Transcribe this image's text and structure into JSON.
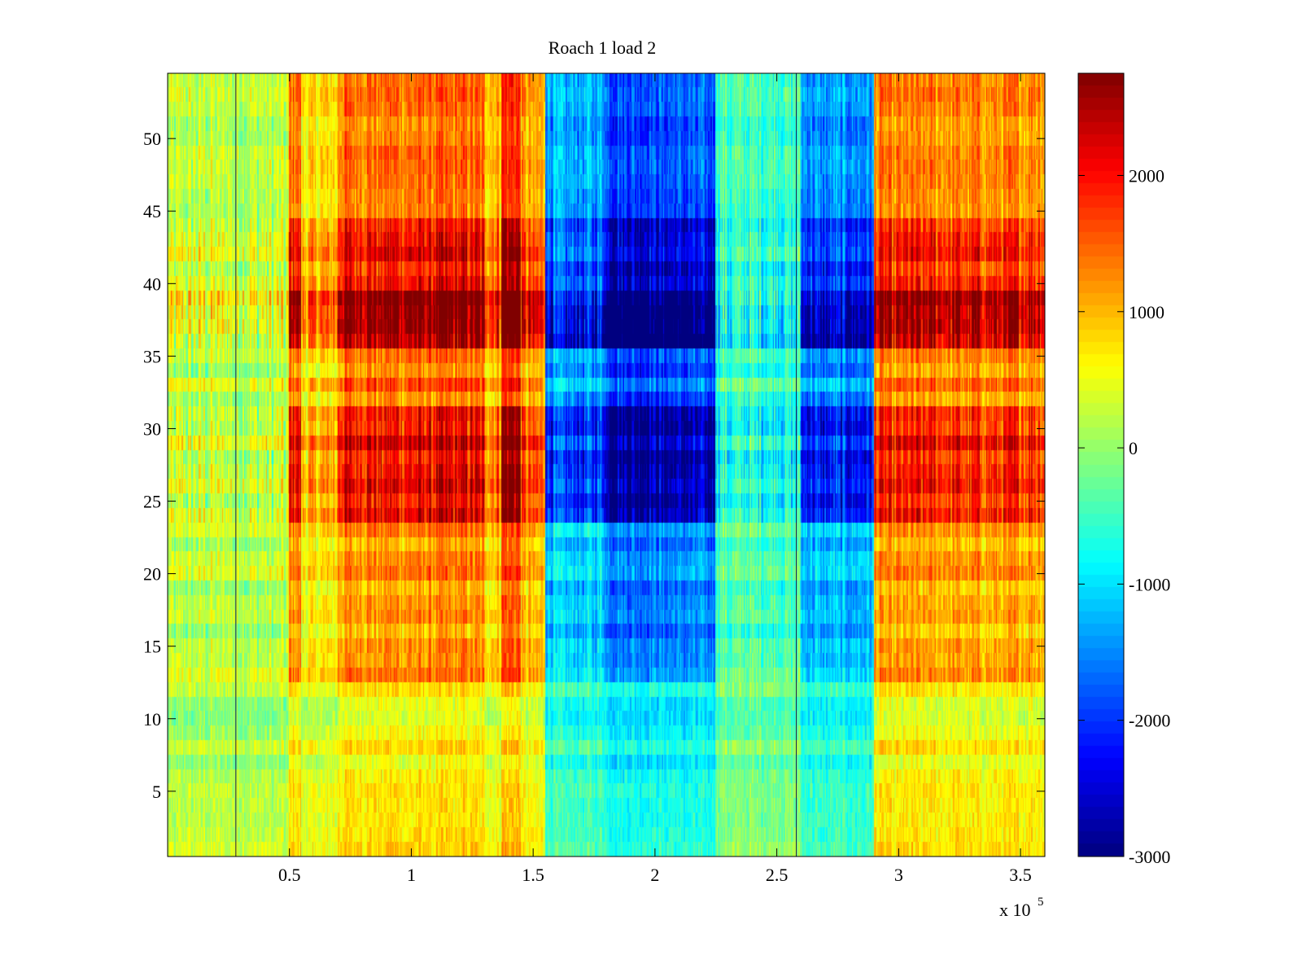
{
  "chart_data": {
    "type": "heatmap",
    "title": "Roach 1 load 2",
    "xlabel": "",
    "ylabel": "",
    "x_multiplier_label": "x 10",
    "x_multiplier_exponent": "5",
    "xlim": [
      0,
      3.6
    ],
    "ylim": [
      0.5,
      54.5
    ],
    "x_ticks": [
      0.5,
      1,
      1.5,
      2,
      2.5,
      3,
      3.5
    ],
    "x_tick_labels": [
      "0.5",
      "1",
      "1.5",
      "2",
      "2.5",
      "3",
      "3.5"
    ],
    "y_ticks": [
      5,
      10,
      15,
      20,
      25,
      30,
      35,
      40,
      45,
      50
    ],
    "y_tick_labels": [
      "5",
      "10",
      "15",
      "20",
      "25",
      "30",
      "35",
      "40",
      "45",
      "50"
    ],
    "colormap": "jet",
    "clim": [
      -3000,
      2750
    ],
    "colorbar_ticks": [
      2000,
      1000,
      0,
      -1000,
      -2000,
      -3000
    ],
    "colorbar_tick_labels": [
      "2000",
      "1000",
      "0",
      "-1000",
      "-2000",
      "-3000"
    ],
    "colorbar_placement": "right",
    "grid": false,
    "segments": [
      {
        "x_start": 0.0,
        "x_end": 0.5,
        "level": 0.15
      },
      {
        "x_start": 0.5,
        "x_end": 0.55,
        "level": 1.0
      },
      {
        "x_start": 0.55,
        "x_end": 0.7,
        "level": 0.5
      },
      {
        "x_start": 0.7,
        "x_end": 1.3,
        "level": 0.95
      },
      {
        "x_start": 1.3,
        "x_end": 1.37,
        "level": 0.7
      },
      {
        "x_start": 1.37,
        "x_end": 1.45,
        "level": 1.25
      },
      {
        "x_start": 1.45,
        "x_end": 1.55,
        "level": 0.7
      },
      {
        "x_start": 1.55,
        "x_end": 1.8,
        "level": -0.85
      },
      {
        "x_start": 1.8,
        "x_end": 2.25,
        "level": -1.2
      },
      {
        "x_start": 2.25,
        "x_end": 2.6,
        "level": -0.3
      },
      {
        "x_start": 2.6,
        "x_end": 2.9,
        "level": -0.95
      },
      {
        "x_start": 2.9,
        "x_end": 3.6,
        "level": 0.85
      }
    ],
    "row_bands": [
      {
        "y_start": 0.5,
        "y_end": 12.5,
        "gain": 0.45
      },
      {
        "y_start": 12.5,
        "y_end": 23.5,
        "gain": 0.85
      },
      {
        "y_start": 23.5,
        "y_end": 31.5,
        "gain": 1.5
      },
      {
        "y_start": 31.5,
        "y_end": 35.5,
        "gain": 1.0
      },
      {
        "y_start": 35.5,
        "y_end": 39.5,
        "gain": 1.9
      },
      {
        "y_start": 39.5,
        "y_end": 44.5,
        "gain": 1.4
      },
      {
        "y_start": 44.5,
        "y_end": 54.5,
        "gain": 1.0
      }
    ],
    "amplitude": 1500,
    "scan_lines": [
      0.28,
      2.58
    ]
  }
}
